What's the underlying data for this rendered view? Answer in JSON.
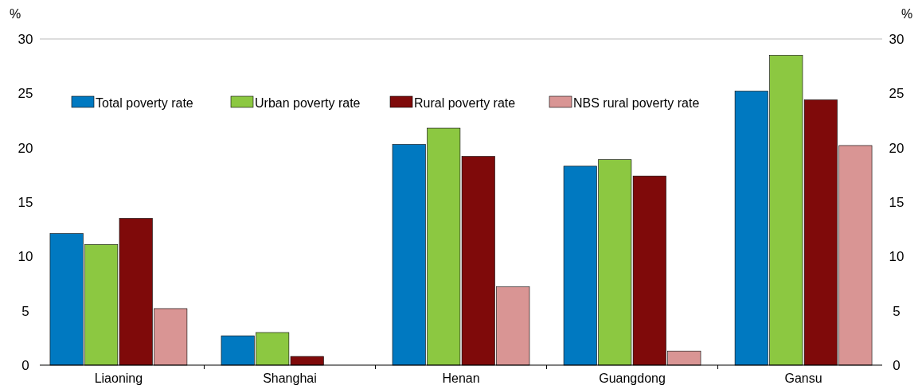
{
  "chart_data": {
    "type": "bar",
    "ylabel": "%",
    "y2label": "%",
    "categories": [
      "Liaoning",
      "Shanghai",
      "Henan",
      "Guangdong",
      "Gansu"
    ],
    "series": [
      {
        "name": "Total poverty rate",
        "color": "#0079c1",
        "values": [
          12.1,
          2.7,
          20.3,
          18.3,
          25.2
        ]
      },
      {
        "name": "Urban poverty rate",
        "color": "#8cc841",
        "values": [
          11.1,
          3.0,
          21.8,
          18.9,
          28.5
        ]
      },
      {
        "name": "Rural poverty rate",
        "color": "#7f0a0a",
        "values": [
          13.5,
          0.8,
          19.2,
          17.4,
          24.4
        ]
      },
      {
        "name": "NBS rural poverty rate",
        "color": "#d99594",
        "values": [
          5.2,
          null,
          7.2,
          1.3,
          20.2
        ]
      }
    ],
    "ylim": [
      0,
      30
    ],
    "yticks": [
      0,
      5,
      10,
      15,
      20,
      25,
      30
    ],
    "y2lim": [
      0,
      30
    ],
    "y2ticks": [
      0,
      5,
      10,
      15,
      20,
      25,
      30
    ],
    "legend": "top",
    "grid": false
  }
}
